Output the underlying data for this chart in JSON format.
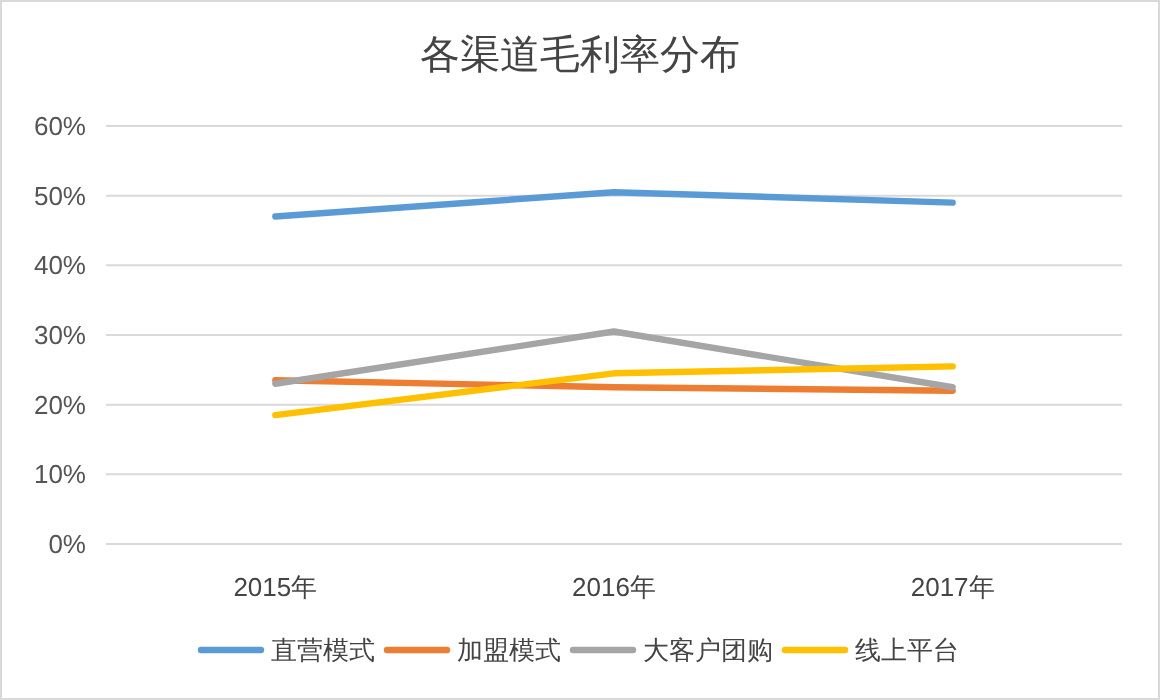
{
  "chart_data": {
    "type": "line",
    "title": "各渠道毛利率分布",
    "categories": [
      "2015年",
      "2016年",
      "2017年"
    ],
    "series": [
      {
        "name": "直营模式",
        "color": "#5b9bd5",
        "values": [
          47,
          50.5,
          49
        ]
      },
      {
        "name": "加盟模式",
        "color": "#ed7d31",
        "values": [
          23.5,
          22.5,
          22
        ]
      },
      {
        "name": "大客户团购",
        "color": "#a5a5a5",
        "values": [
          23,
          30.5,
          22.5
        ]
      },
      {
        "name": "线上平台",
        "color": "#ffc000",
        "values": [
          18.5,
          24.5,
          25.5
        ]
      }
    ],
    "ylim": [
      0,
      60
    ],
    "yticks": [
      {
        "value": 0,
        "label": "0%"
      },
      {
        "value": 10,
        "label": "10%"
      },
      {
        "value": 20,
        "label": "20%"
      },
      {
        "value": 30,
        "label": "30%"
      },
      {
        "value": 40,
        "label": "40%"
      },
      {
        "value": 50,
        "label": "50%"
      },
      {
        "value": 60,
        "label": "60%"
      }
    ],
    "grid": "y",
    "legend": "bottom"
  }
}
